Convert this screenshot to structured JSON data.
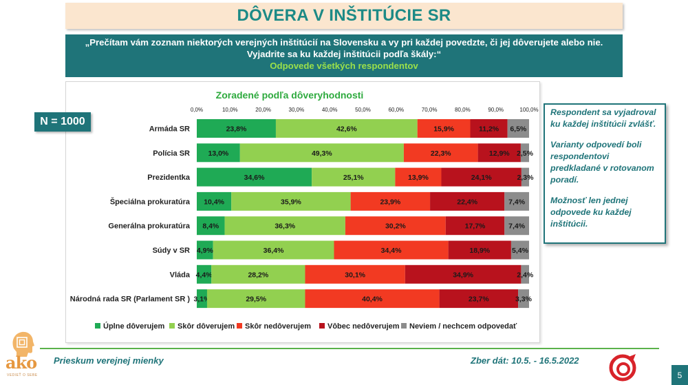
{
  "header": {
    "title": "DÔVERA V INŠTITÚCIE SR",
    "question": "„Prečítam vám zoznam niektorých verejných inštitúcií na Slovensku a vy pri každej povedzte, či jej dôverujete alebo nie. Vyjadrite sa ku každej inštitúcii podľa škály:“",
    "subtitle": "Odpovede všetkých respondentov"
  },
  "sample": {
    "label": "N = 1000"
  },
  "notes": [
    "Respondent sa vyjadroval ku každej inštitúcii zvlášť.",
    "Varianty odpovedí boli respondentovi predkladané v rotovanom poradí.",
    "Možnosť len jednej odpovede ku každej inštitúcii."
  ],
  "footer": {
    "left": "Prieskum verejnej mienky",
    "right": "Zber dát: 10.5. - 16.5.2022",
    "page": "5",
    "brand": "ako",
    "brand_small": "VEDIEŤ O SEBE"
  },
  "colors": {
    "teal": "#1f7479",
    "title_teal": "#1c8a86",
    "accent_green": "#9be04a",
    "footer_line": "#5ab24a"
  },
  "chart_data": {
    "type": "bar",
    "stacked": true,
    "orientation": "horizontal",
    "title": "Zoradené podľa dôveryhodnosti",
    "xlim": [
      0,
      100
    ],
    "xticks": [
      "0,0%",
      "10,0%",
      "20,0%",
      "30,0%",
      "40,0%",
      "50,0%",
      "60,0%",
      "70,0%",
      "80,0%",
      "90,0%",
      "100,0%"
    ],
    "legend_position": "bottom",
    "categories": [
      "Armáda SR",
      "Polícia SR",
      "Prezidentka",
      "Špeciálna prokuratúra",
      "Generálna prokuratúra",
      "Súdy v SR",
      "Vláda",
      "Národná rada SR (Parlament SR )"
    ],
    "series": [
      {
        "name": "Úplne dôverujem",
        "color": "#1faa55",
        "values": [
          23.8,
          13.0,
          34.6,
          10.4,
          8.4,
          4.9,
          4.4,
          3.1
        ],
        "labels": [
          "23,8%",
          "13,0%",
          "34,6%",
          "10,4%",
          "8,4%",
          "4,9%",
          "4,4%",
          "3,1%"
        ]
      },
      {
        "name": "Skôr dôverujem",
        "color": "#92d050",
        "values": [
          42.6,
          49.3,
          25.1,
          35.9,
          36.3,
          36.4,
          28.2,
          29.5
        ],
        "labels": [
          "42,6%",
          "49,3%",
          "25,1%",
          "35,9%",
          "36,3%",
          "36,4%",
          "28,2%",
          "29,5%"
        ]
      },
      {
        "name": "Skôr nedôverujem",
        "color": "#f23a22",
        "values": [
          15.9,
          22.3,
          13.9,
          23.9,
          30.2,
          34.4,
          30.1,
          40.4
        ],
        "labels": [
          "15,9%",
          "22,3%",
          "13,9%",
          "23,9%",
          "30,2%",
          "34,4%",
          "30,1%",
          "40,4%"
        ]
      },
      {
        "name": "Vôbec nedôverujem",
        "color": "#b8121d",
        "values": [
          11.2,
          12.9,
          24.1,
          22.4,
          17.7,
          18.9,
          34.9,
          23.7
        ],
        "labels": [
          "11,2%",
          "12,9%",
          "24,1%",
          "22,4%",
          "17,7%",
          "18,9%",
          "34,9%",
          "23,7%"
        ]
      },
      {
        "name": "Neviem / nechcem odpovedať",
        "color": "#8c8c8c",
        "values": [
          6.5,
          2.5,
          2.3,
          7.4,
          7.4,
          5.4,
          2.4,
          3.3
        ],
        "labels": [
          "6,5%",
          "2,5%",
          "2,3%",
          "7,4%",
          "7,4%",
          "5,4%",
          "2,4%",
          "3,3%"
        ]
      }
    ]
  }
}
